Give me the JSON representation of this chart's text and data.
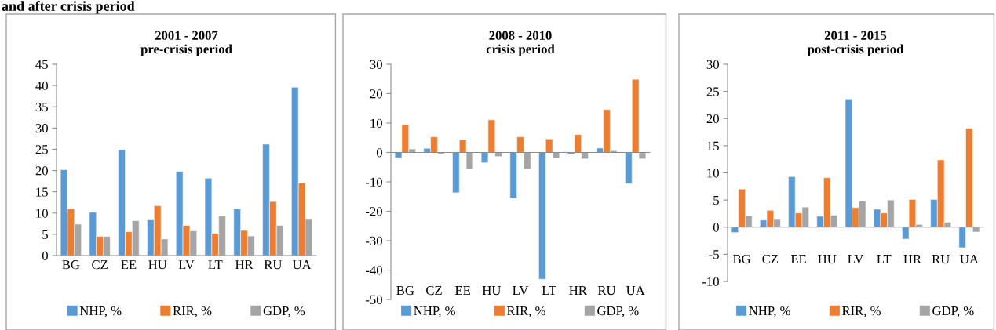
{
  "chart_data": [
    {
      "type": "bar",
      "title": "2001 - 2007\npre-crisis period",
      "annotations": [
        "and after crisis period"
      ],
      "categories": [
        "BG",
        "CZ",
        "EE",
        "HU",
        "LV",
        "LT",
        "HR",
        "RU",
        "UA"
      ],
      "series": [
        {
          "name": "NHP, %",
          "color": "#5b9bd5",
          "values": [
            20.2,
            10.2,
            24.9,
            8.4,
            19.8,
            18.2,
            11.0,
            26.2,
            39.6
          ]
        },
        {
          "name": "RIR, %",
          "color": "#ed7d31",
          "values": [
            11.0,
            4.5,
            5.6,
            11.7,
            7.1,
            5.2,
            5.9,
            12.7,
            17.1
          ]
        },
        {
          "name": "GDP, %",
          "color": "#a5a5a5",
          "values": [
            7.4,
            4.5,
            8.2,
            3.9,
            5.8,
            9.3,
            4.6,
            7.1,
            8.5
          ]
        }
      ],
      "ylim": [
        0,
        45
      ],
      "yticks": [
        0,
        5,
        10,
        15,
        20,
        25,
        30,
        35,
        40,
        45
      ],
      "legend": "bottom"
    },
    {
      "type": "bar",
      "title": "2008 - 2010\ncrisis period",
      "categories": [
        "BG",
        "CZ",
        "EE",
        "HU",
        "LV",
        "LT",
        "HR",
        "RU",
        "UA"
      ],
      "series": [
        {
          "name": "NHP, %",
          "color": "#5b9bd5",
          "values": [
            -1.8,
            1.4,
            -13.7,
            -3.5,
            -15.6,
            -43.1,
            -0.5,
            1.5,
            -10.6
          ]
        },
        {
          "name": "RIR, %",
          "color": "#ed7d31",
          "values": [
            9.4,
            5.3,
            4.3,
            11.1,
            5.3,
            4.6,
            6.1,
            14.6,
            24.9
          ]
        },
        {
          "name": "GDP, %",
          "color": "#a5a5a5",
          "values": [
            1.2,
            -0.5,
            -5.7,
            -1.4,
            -5.7,
            -2.0,
            -2.2,
            0.6,
            -2.2
          ]
        }
      ],
      "ylim": [
        -50,
        30
      ],
      "yticks": [
        -50,
        -40,
        -30,
        -20,
        -10,
        0,
        10,
        20,
        30
      ],
      "legend": "bottom"
    },
    {
      "type": "bar",
      "title": "2011 - 2015\npost-crisis period",
      "categories": [
        "BG",
        "CZ",
        "EE",
        "HU",
        "LV",
        "LT",
        "HR",
        "RU",
        "UA"
      ],
      "series": [
        {
          "name": "NHP, %",
          "color": "#5b9bd5",
          "values": [
            -1.0,
            1.3,
            9.3,
            2.0,
            23.6,
            3.3,
            -2.2,
            5.1,
            -3.8
          ]
        },
        {
          "name": "RIR, %",
          "color": "#ed7d31",
          "values": [
            7.0,
            3.1,
            2.6,
            9.1,
            3.6,
            2.6,
            5.1,
            12.4,
            18.2
          ]
        },
        {
          "name": "GDP, %",
          "color": "#a5a5a5",
          "values": [
            2.1,
            1.4,
            3.7,
            2.2,
            4.8,
            5.0,
            0.5,
            0.9,
            -0.9
          ]
        }
      ],
      "ylim": [
        -10,
        30
      ],
      "yticks": [
        -10,
        -5,
        0,
        5,
        10,
        15,
        20,
        25,
        30
      ],
      "legend": "bottom"
    }
  ]
}
